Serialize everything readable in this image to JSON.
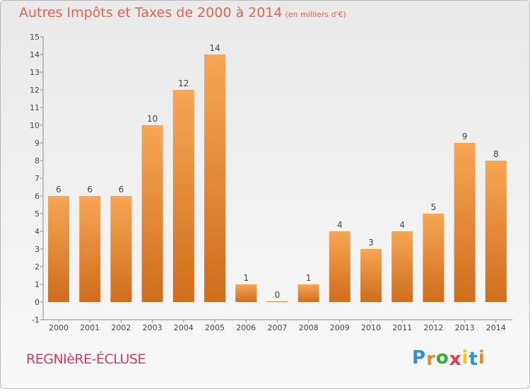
{
  "header": {
    "title": "Autres Impôts et Taxes de 2000 à 2014",
    "unit": "(en milliers d'€)"
  },
  "footer": {
    "town": "REGNIèRE-ÉCLUSE",
    "brand_letters": [
      "P",
      "r",
      "o",
      "x",
      "i",
      "t",
      "i"
    ],
    "brand_colors": [
      "#2e8fd6",
      "#f08a1d",
      "#3aa935",
      "#e8384f",
      "#f6c513",
      "#2e8fd6",
      "#f08a1d"
    ]
  },
  "chart_data": {
    "type": "bar",
    "title": "Autres Impôts et Taxes de 2000 à 2014",
    "subtitle": "(en milliers d'€)",
    "xlabel": "",
    "ylabel": "",
    "categories": [
      "2000",
      "2001",
      "2002",
      "2003",
      "2004",
      "2005",
      "2006",
      "2007",
      "2008",
      "2009",
      "2010",
      "2011",
      "2012",
      "2013",
      "2014"
    ],
    "values": [
      6,
      6,
      6,
      10,
      12,
      14,
      1,
      0,
      1,
      4,
      3,
      4,
      5,
      9,
      8
    ],
    "ylim": [
      -1,
      15
    ],
    "yticks": [
      -1,
      0,
      1,
      2,
      3,
      4,
      5,
      6,
      7,
      8,
      9,
      10,
      11,
      12,
      13,
      14,
      15
    ],
    "grid": false,
    "legend": "none",
    "bar_color_top": "#f7a654",
    "bar_color_bottom": "#cf6d1c"
  }
}
